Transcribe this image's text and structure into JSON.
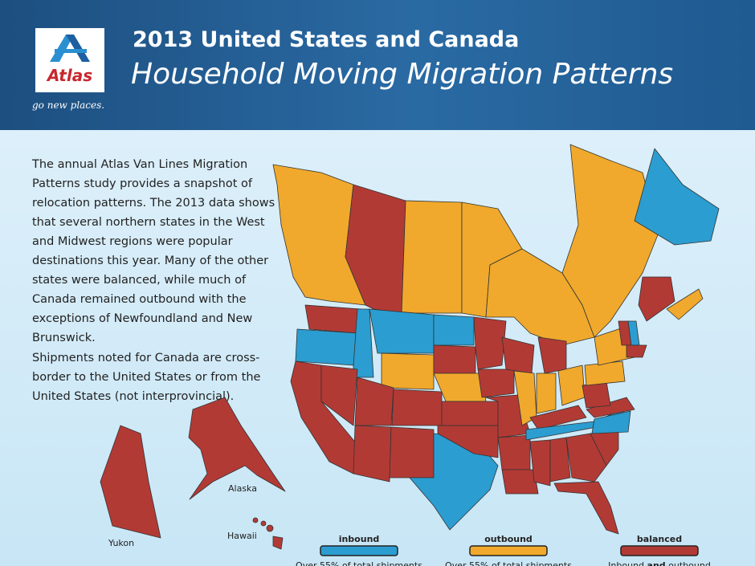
{
  "header": {
    "logo": "Atlas",
    "tagline": "go new places.",
    "title": "2013 United States and Canada",
    "subtitle": "Household Moving Migration Patterns"
  },
  "intro": [
    "The annual Atlas Van Lines Migration Patterns study provides a snapshot of relocation patterns. The 2013 data shows that several northern states in the West and Midwest regions were popular destinations this year. Many of the other states were balanced, while much of Canada remained outbound with the exceptions of Newfoundland and New Brunswick.",
    "Shipments noted for Canada are cross-border to the United States or from the United States (not interprovincial)."
  ],
  "map_labels": {
    "alaska": "Alaska",
    "hawaii": "Hawaii",
    "yukon": "Yukon"
  },
  "legend": [
    {
      "title": "inbound",
      "color": "#2b9dd0",
      "desc": [
        "Over 55% of total shipments"
      ]
    },
    {
      "title": "outbound",
      "color": "#f0a92c",
      "desc": [
        "Over 55% of total shipments"
      ]
    },
    {
      "title": "balanced",
      "color": "#b23a35",
      "desc": [
        "Inbound ",
        "and",
        " outbound"
      ]
    }
  ]
}
